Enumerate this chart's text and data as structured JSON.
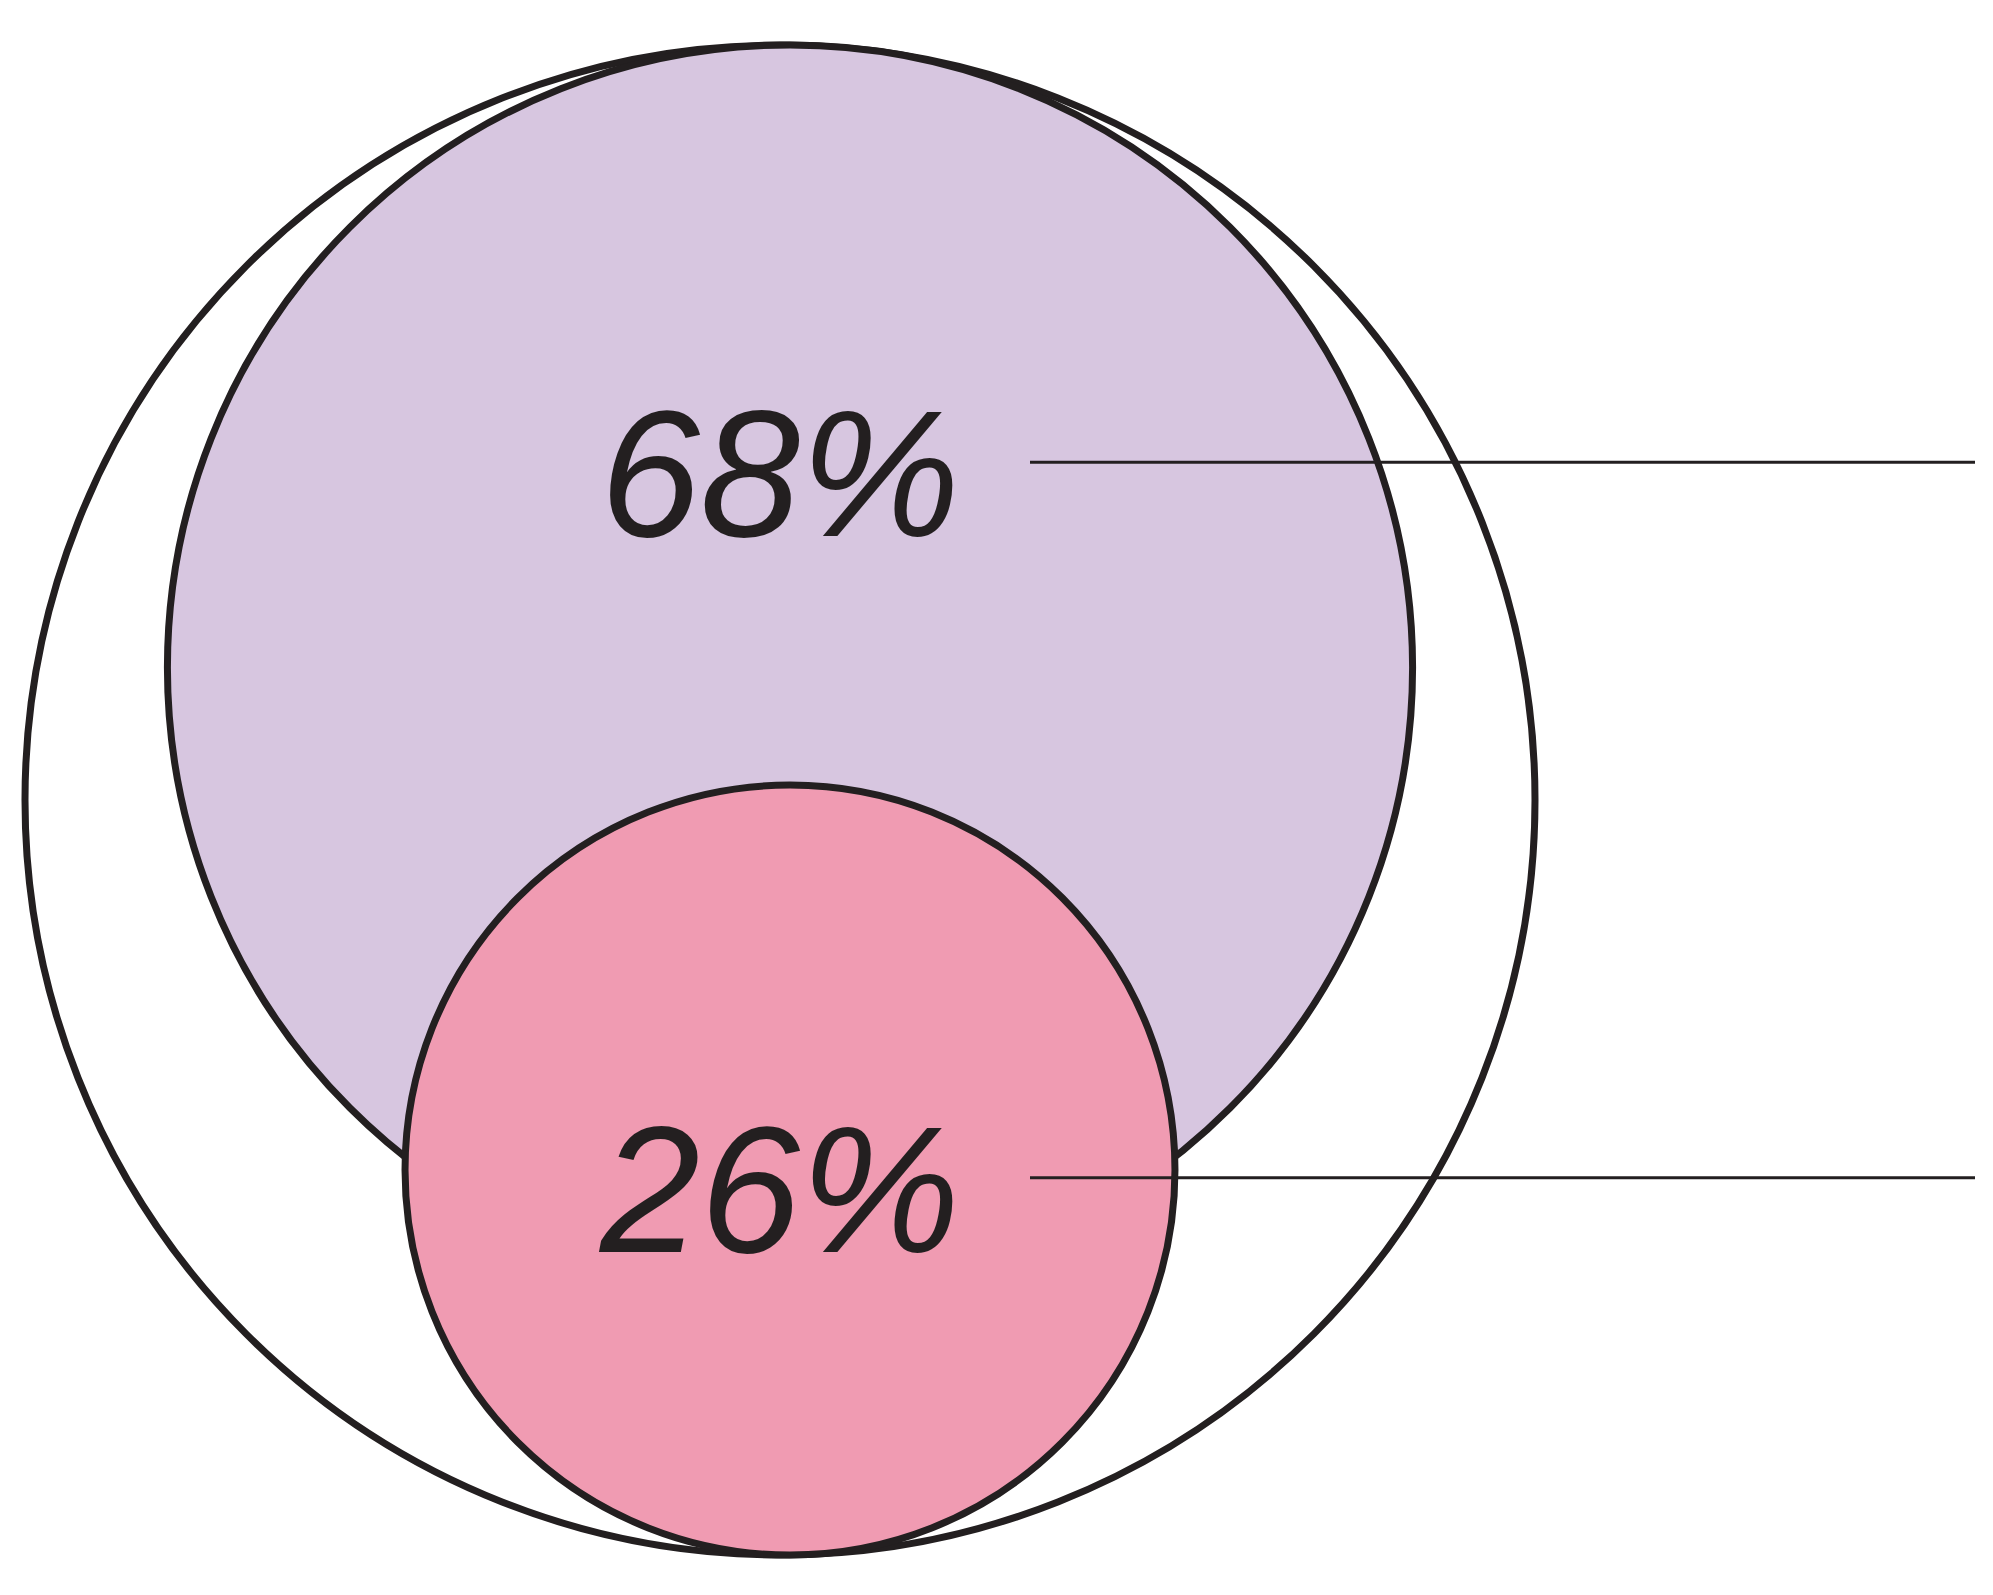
{
  "chart_data": {
    "type": "other",
    "categories": [
      null,
      null
    ],
    "values": [
      68,
      26
    ],
    "colors": [
      "#d7c6e0",
      "#f09bb2"
    ],
    "value_labels": [
      "68%",
      "26%"
    ]
  }
}
